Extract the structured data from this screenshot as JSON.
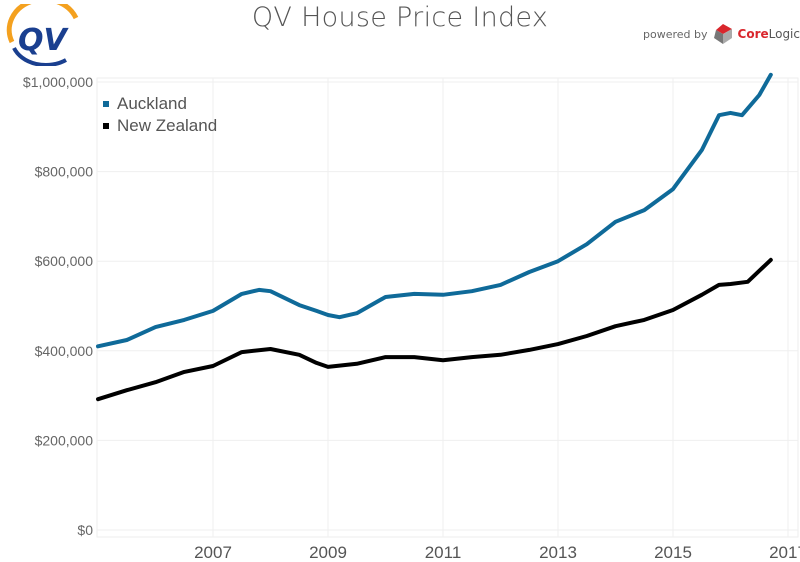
{
  "header": {
    "title": "QV House Price Index",
    "logo_text": "QV",
    "powered_by": "powered by",
    "brand_core": "Core",
    "brand_logic": "Logic"
  },
  "chart_data": {
    "type": "line",
    "title": "QV House Price Index",
    "xlabel": "",
    "ylabel": "",
    "xlim": [
      2005.0,
      2017.2
    ],
    "ylim": [
      0,
      1000000
    ],
    "x_ticks": [
      2007,
      2009,
      2011,
      2013,
      2015,
      2017
    ],
    "y_ticks": [
      0,
      200000,
      400000,
      600000,
      800000,
      1000000
    ],
    "y_tick_labels": [
      "$0",
      "$200,000",
      "$400,000",
      "$600,000",
      "$800,000",
      "$1,000,000"
    ],
    "grid": true,
    "legend_position": "top-left",
    "series": [
      {
        "name": "Auckland",
        "color": "#0f6a99",
        "x": [
          2005.0,
          2005.5,
          2006.0,
          2006.5,
          2007.0,
          2007.5,
          2007.8,
          2008.0,
          2008.5,
          2008.8,
          2009.0,
          2009.2,
          2009.5,
          2010.0,
          2010.5,
          2011.0,
          2011.5,
          2012.0,
          2012.5,
          2013.0,
          2013.5,
          2014.0,
          2014.5,
          2015.0,
          2015.5,
          2015.8,
          2016.0,
          2016.2,
          2016.5,
          2016.7
        ],
        "y": [
          410000,
          424000,
          453000,
          469000,
          489000,
          527000,
          536000,
          533000,
          502000,
          489000,
          480000,
          475000,
          484000,
          520000,
          527000,
          525000,
          533000,
          547000,
          576000,
          600000,
          638000,
          688000,
          714000,
          761000,
          848000,
          926000,
          931000,
          926000,
          971000,
          1016000
        ]
      },
      {
        "name": "New Zealand",
        "color": "#000000",
        "x": [
          2005.0,
          2005.5,
          2006.0,
          2006.5,
          2007.0,
          2007.5,
          2008.0,
          2008.5,
          2008.8,
          2009.0,
          2009.5,
          2010.0,
          2010.5,
          2011.0,
          2011.5,
          2012.0,
          2012.5,
          2013.0,
          2013.5,
          2014.0,
          2014.5,
          2015.0,
          2015.5,
          2015.8,
          2016.0,
          2016.3,
          2016.7
        ],
        "y": [
          292000,
          312000,
          330000,
          353000,
          366000,
          397000,
          404000,
          391000,
          373000,
          364000,
          371000,
          386000,
          386000,
          379000,
          386000,
          391000,
          402000,
          415000,
          433000,
          455000,
          469000,
          491000,
          525000,
          547000,
          549000,
          554000,
          603000
        ]
      }
    ]
  }
}
